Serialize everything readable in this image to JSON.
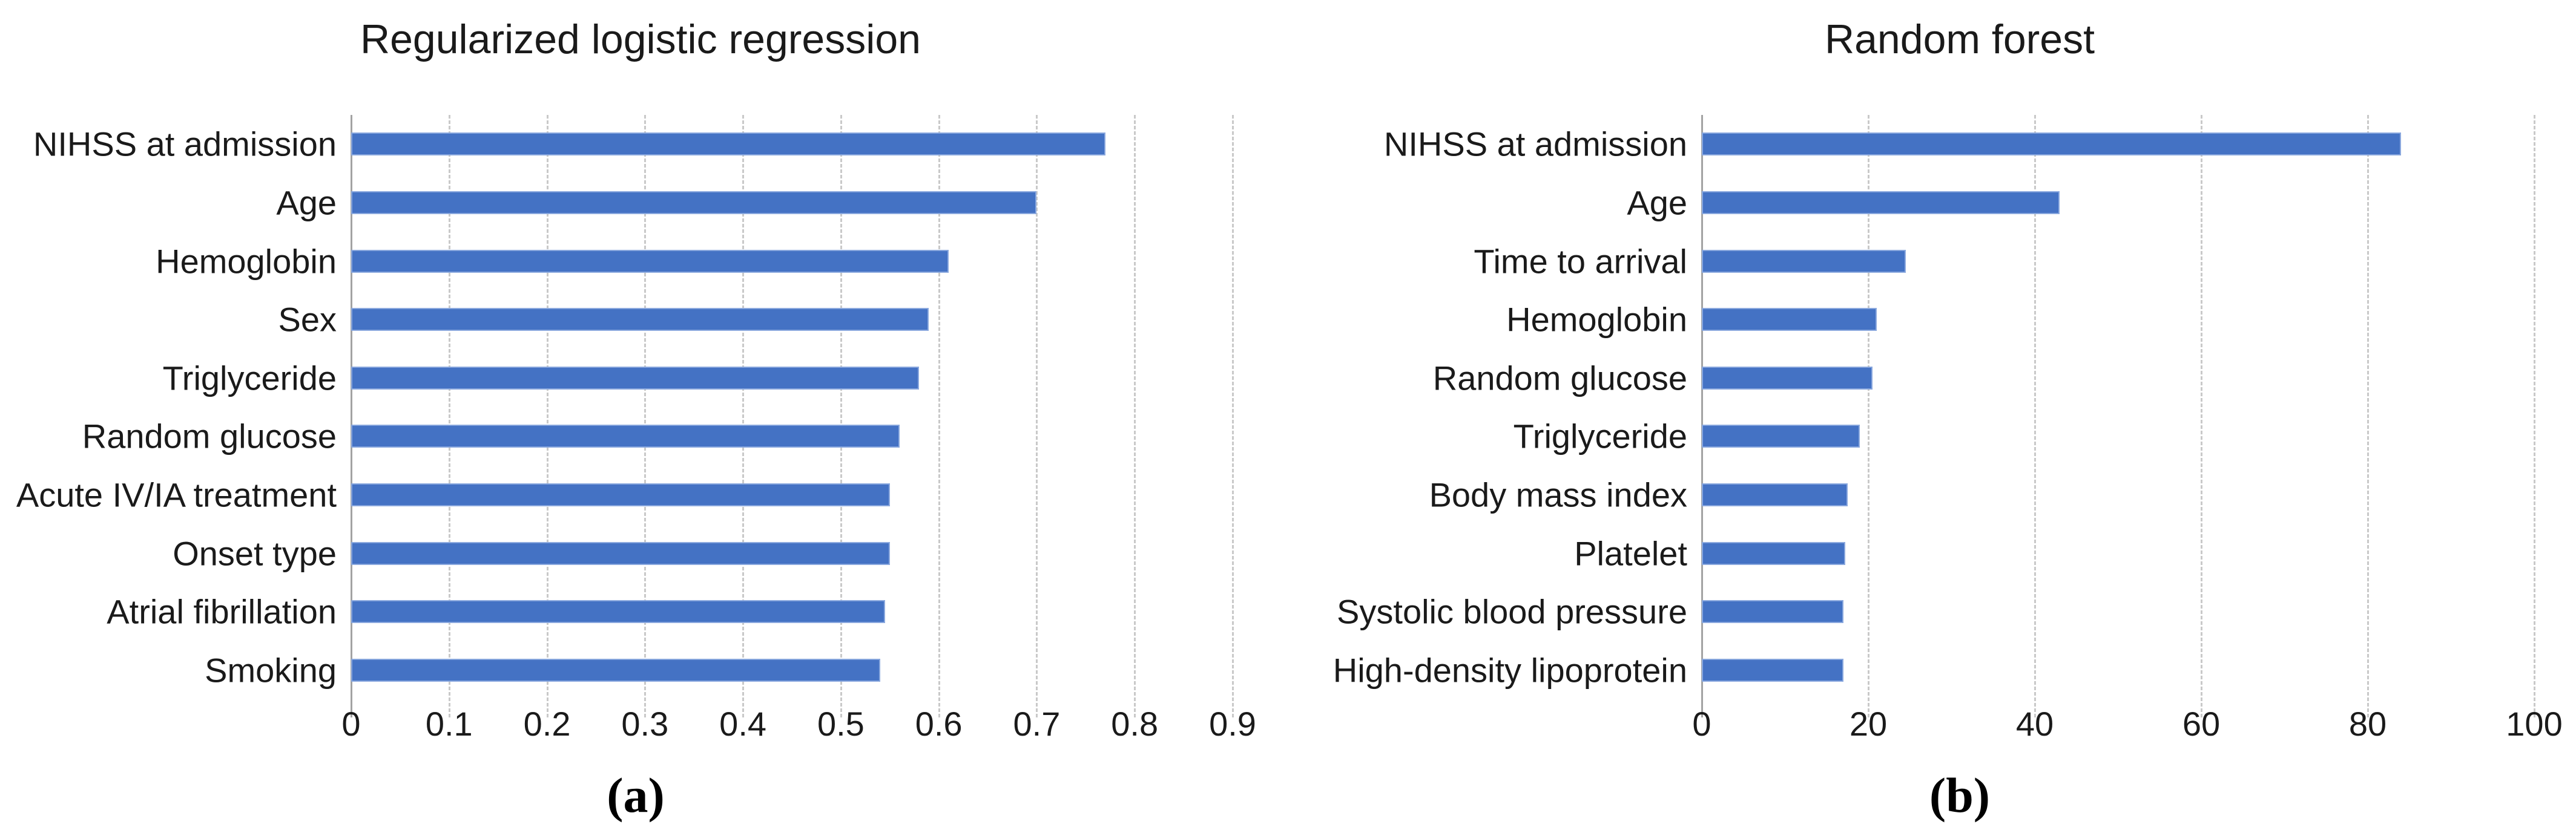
{
  "figure": {
    "background": "#ffffff"
  },
  "colors": {
    "bar_fill": "#4472C4",
    "bar_edge": "#8aa8de",
    "gridline": "#c9c9c9",
    "axis_line": "#a3a3a3",
    "text": "#1a1a1a"
  },
  "chart_data": [
    {
      "type": "bar",
      "orientation": "horizontal",
      "title": "Regularized logistic regression",
      "caption": "(a)",
      "categories": [
        "NIHSS at admission",
        "Age",
        "Hemoglobin",
        "Sex",
        "Triglyceride",
        "Random glucose",
        "Acute IV/IA treatment",
        "Onset type",
        "Atrial fibrillation",
        "Smoking"
      ],
      "values": [
        0.77,
        0.7,
        0.61,
        0.59,
        0.58,
        0.56,
        0.55,
        0.55,
        0.545,
        0.54
      ],
      "xlabel": "",
      "ylabel": "",
      "xlim": [
        0,
        0.9
      ],
      "xticks": [
        0,
        0.1,
        0.2,
        0.3,
        0.4,
        0.5,
        0.6,
        0.7,
        0.8,
        0.9
      ],
      "xtick_labels": [
        "0",
        "0.1",
        "0.2",
        "0.3",
        "0.4",
        "0.5",
        "0.6",
        "0.7",
        "0.8",
        "0.9"
      ],
      "grid": true,
      "legend": false
    },
    {
      "type": "bar",
      "orientation": "horizontal",
      "title": "Random forest",
      "caption": "(b)",
      "categories": [
        "NIHSS at admission",
        "Age",
        "Time to arrival",
        "Hemoglobin",
        "Random glucose",
        "Triglyceride",
        "Body mass index",
        "Platelet",
        "Systolic blood pressure",
        "High-density lipoprotein"
      ],
      "values": [
        84,
        43,
        24.5,
        21,
        20.5,
        19,
        17.5,
        17.2,
        17,
        17
      ],
      "xlabel": "",
      "ylabel": "",
      "xlim": [
        0,
        100
      ],
      "xticks": [
        0,
        20,
        40,
        60,
        80,
        100
      ],
      "xtick_labels": [
        "0",
        "20",
        "40",
        "60",
        "80",
        "100"
      ],
      "grid": true,
      "legend": false
    }
  ]
}
